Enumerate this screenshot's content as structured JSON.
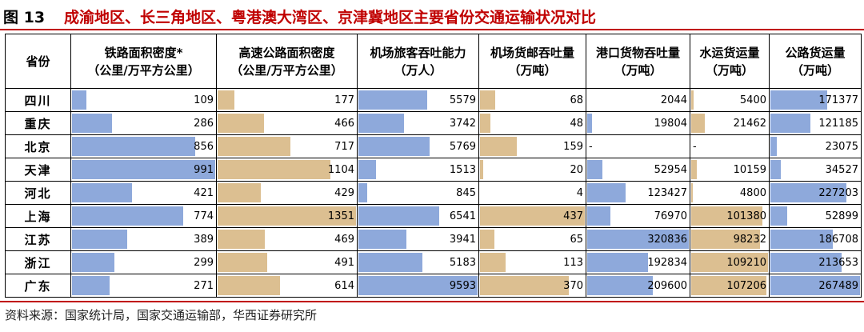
{
  "figure": {
    "label": "图 13",
    "title": "成渝地区、长三角地区、粤港澳大湾区、京津冀地区主要省份交通运输状况对比"
  },
  "source": "资料来源：国家统计局，国家交通运输部，华西证券研究所",
  "colors": {
    "blue": "#8ea9db",
    "tan": "#dcbf91",
    "accent": "#c00000"
  },
  "table": {
    "province_header": "省份",
    "columns": [
      {
        "name": "铁路面积密度*",
        "unit": "（公里/万平方公里）",
        "color": "blue",
        "max": 991
      },
      {
        "name": "高速公路面积密度",
        "unit": "（公里/万平方公里）",
        "color": "tan",
        "max": 1351
      },
      {
        "name": "机场旅客吞吐能力",
        "unit": "（万人）",
        "color": "blue",
        "max": 9593
      },
      {
        "name": "机场货邮吞吐量",
        "unit": "（万吨）",
        "color": "tan",
        "max": 437
      },
      {
        "name": "港口货物吞吐量",
        "unit": "（万吨）",
        "color": "blue",
        "max": 320836
      },
      {
        "name": "水运货运量",
        "unit": "（万吨）",
        "color": "tan",
        "max": 109210
      },
      {
        "name": "公路货运量",
        "unit": "（万吨）",
        "color": "blue",
        "max": 267489
      }
    ],
    "rows": [
      {
        "province": "四川",
        "values": [
          "109",
          "177",
          "5579",
          "68",
          "2044",
          "5400",
          "171377"
        ]
      },
      {
        "province": "重庆",
        "values": [
          "286",
          "466",
          "3742",
          "48",
          "19804",
          "21462",
          "121185"
        ]
      },
      {
        "province": "北京",
        "values": [
          "856",
          "717",
          "5769",
          "159",
          "-",
          "-",
          "23075"
        ]
      },
      {
        "province": "天津",
        "values": [
          "991",
          "1104",
          "1513",
          "20",
          "52954",
          "10159",
          "34527"
        ]
      },
      {
        "province": "河北",
        "values": [
          "421",
          "429",
          "845",
          "4",
          "123427",
          "4800",
          "227203"
        ]
      },
      {
        "province": "上海",
        "values": [
          "774",
          "1351",
          "6541",
          "437",
          "76970",
          "101380",
          "52899"
        ]
      },
      {
        "province": "江苏",
        "values": [
          "389",
          "469",
          "3941",
          "65",
          "320836",
          "98232",
          "186708"
        ]
      },
      {
        "province": "浙江",
        "values": [
          "299",
          "491",
          "5183",
          "113",
          "192834",
          "109210",
          "213653"
        ]
      },
      {
        "province": "广东",
        "values": [
          "271",
          "614",
          "9593",
          "370",
          "209600",
          "107206",
          "267489"
        ]
      }
    ]
  }
}
